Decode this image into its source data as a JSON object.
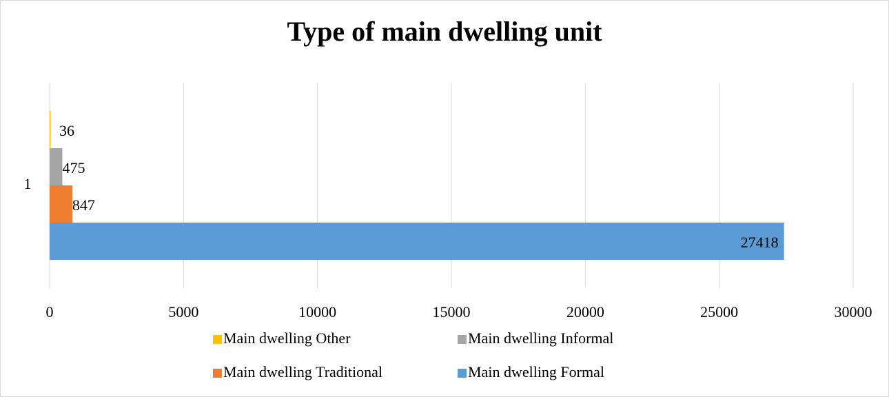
{
  "chart_data": {
    "type": "hbar",
    "title": "Type of main dwelling unit",
    "categories": [
      "1"
    ],
    "series": [
      {
        "name": "Main dwelling Other",
        "color": "#ffc000",
        "values": [
          36
        ]
      },
      {
        "name": "Main dwelling Informal",
        "color": "#a5a5a5",
        "values": [
          475
        ]
      },
      {
        "name": "Main dwelling Traditional",
        "color": "#ed7d31",
        "values": [
          847
        ]
      },
      {
        "name": "Main dwelling Formal",
        "color": "#5b9bd5",
        "values": [
          27418
        ]
      }
    ],
    "xlim": [
      0,
      30000
    ],
    "xticks": [
      0,
      5000,
      10000,
      15000,
      20000,
      25000,
      30000
    ],
    "grid": true,
    "legend": "bottom"
  }
}
